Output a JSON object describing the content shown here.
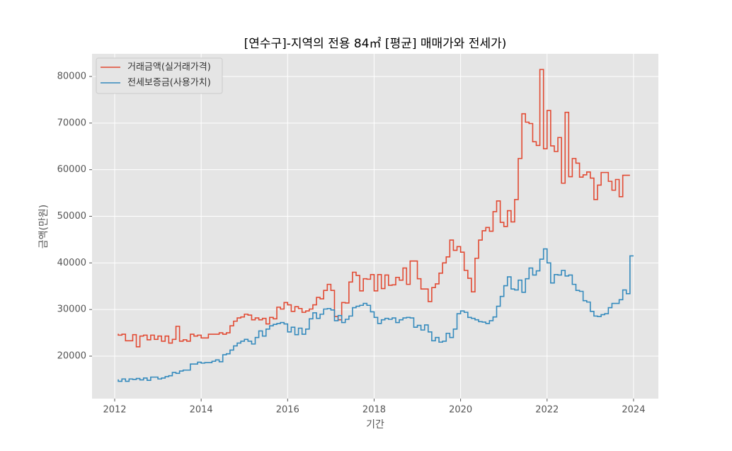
{
  "chart_data": {
    "type": "step",
    "title": "[연수구]-지역의 전용 84㎡ [평균] 매매가와 전세가)",
    "x_label": "기간",
    "y_label": "금액(만원)",
    "x": [
      2012.083,
      2012.167,
      2012.25,
      2012.333,
      2012.417,
      2012.5,
      2012.583,
      2012.667,
      2012.75,
      2012.833,
      2012.917,
      2013,
      2013.083,
      2013.167,
      2013.25,
      2013.333,
      2013.417,
      2013.5,
      2013.583,
      2013.667,
      2013.75,
      2013.833,
      2013.917,
      2014,
      2014.083,
      2014.167,
      2014.25,
      2014.333,
      2014.417,
      2014.5,
      2014.583,
      2014.667,
      2014.75,
      2014.833,
      2014.917,
      2015,
      2015.083,
      2015.167,
      2015.25,
      2015.333,
      2015.417,
      2015.5,
      2015.583,
      2015.667,
      2015.75,
      2015.833,
      2015.917,
      2016,
      2016.083,
      2016.167,
      2016.25,
      2016.333,
      2016.417,
      2016.5,
      2016.583,
      2016.667,
      2016.75,
      2016.833,
      2016.917,
      2017,
      2017.083,
      2017.167,
      2017.25,
      2017.333,
      2017.417,
      2017.5,
      2017.583,
      2017.667,
      2017.75,
      2017.833,
      2017.917,
      2018,
      2018.083,
      2018.167,
      2018.25,
      2018.333,
      2018.417,
      2018.5,
      2018.583,
      2018.667,
      2018.75,
      2018.833,
      2018.917,
      2019,
      2019.083,
      2019.167,
      2019.25,
      2019.333,
      2019.417,
      2019.5,
      2019.583,
      2019.667,
      2019.75,
      2019.833,
      2019.917,
      2020,
      2020.083,
      2020.167,
      2020.25,
      2020.333,
      2020.417,
      2020.5,
      2020.583,
      2020.667,
      2020.75,
      2020.833,
      2020.917,
      2021,
      2021.083,
      2021.167,
      2021.25,
      2021.333,
      2021.417,
      2021.5,
      2021.583,
      2021.667,
      2021.75,
      2021.833,
      2021.917,
      2022,
      2022.083,
      2022.167,
      2022.25,
      2022.333,
      2022.417,
      2022.5,
      2022.583,
      2022.667,
      2022.75,
      2022.833,
      2022.917,
      2023,
      2023.083,
      2023.167,
      2023.25,
      2023.333,
      2023.417,
      2023.5,
      2023.583,
      2023.667,
      2023.75,
      2023.833,
      2023.917,
      2024
    ],
    "series": [
      {
        "name": "거래금액(실거래가격)",
        "color": "#E24A33",
        "values": [
          24800,
          24500,
          24700,
          23300,
          23300,
          24600,
          22000,
          24300,
          24500,
          23500,
          24500,
          23600,
          24300,
          23200,
          24300,
          22800,
          23600,
          26400,
          23200,
          23500,
          23200,
          24700,
          24300,
          24500,
          23900,
          23900,
          24700,
          24700,
          24700,
          25000,
          24700,
          25000,
          26500,
          27500,
          28200,
          28400,
          29000,
          28800,
          27800,
          28200,
          27800,
          28100,
          26900,
          28300,
          28000,
          30500,
          30100,
          31500,
          31000,
          29600,
          30600,
          30200,
          29400,
          29700,
          30100,
          31000,
          32600,
          32300,
          34100,
          35400,
          34100,
          28500,
          27800,
          31500,
          31400,
          35900,
          38000,
          37300,
          34000,
          36600,
          36500,
          37500,
          34000,
          37500,
          34500,
          37400,
          35200,
          35300,
          36900,
          36300,
          38900,
          35400,
          40400,
          40400,
          36600,
          34400,
          34400,
          31700,
          34700,
          35500,
          37800,
          40000,
          41300,
          44900,
          42700,
          43500,
          42300,
          38400,
          36700,
          33800,
          41000,
          44900,
          46900,
          47600,
          46800,
          51000,
          53300,
          48700,
          47800,
          51200,
          48800,
          53600,
          62400,
          72000,
          70200,
          69900,
          66000,
          65200,
          81500,
          64500,
          72700,
          65100,
          63900,
          66900,
          57100,
          72300,
          58500,
          62400,
          61400,
          58400,
          58900,
          59500,
          58200,
          53600,
          56700,
          59400,
          59400,
          57500,
          55600,
          57900,
          54200,
          58800,
          58800,
          null
        ]
      },
      {
        "name": "전세보증금(사용가치)",
        "color": "#348ABD",
        "values": [
          15000,
          14600,
          15100,
          14600,
          15100,
          15000,
          15200,
          14900,
          15300,
          14800,
          15500,
          15500,
          15100,
          15300,
          15600,
          15800,
          16500,
          16300,
          16800,
          17000,
          17000,
          18300,
          18300,
          18700,
          18500,
          18600,
          18600,
          18900,
          19200,
          18800,
          20300,
          20500,
          21300,
          22200,
          22800,
          23200,
          23600,
          23200,
          22600,
          24000,
          25400,
          24300,
          25800,
          26500,
          26800,
          27000,
          27200,
          26900,
          25200,
          26200,
          24600,
          26000,
          24700,
          25800,
          28000,
          29300,
          28100,
          29000,
          30100,
          30200,
          29900,
          27600,
          28700,
          27200,
          27900,
          28600,
          30400,
          30700,
          30900,
          31300,
          30900,
          29500,
          28300,
          27000,
          27800,
          28100,
          27900,
          28200,
          27200,
          27800,
          28200,
          28300,
          28200,
          26200,
          26600,
          25600,
          26700,
          25200,
          23300,
          24000,
          23000,
          23200,
          24900,
          24000,
          25800,
          29100,
          29700,
          29400,
          28300,
          28100,
          27800,
          27400,
          27300,
          27000,
          27600,
          28400,
          30700,
          32800,
          35100,
          37000,
          34400,
          34200,
          36300,
          33700,
          36600,
          38900,
          37400,
          38300,
          40800,
          43000,
          40000,
          35700,
          37500,
          37400,
          38400,
          37200,
          37400,
          35400,
          34100,
          33900,
          31900,
          31600,
          29600,
          28600,
          28500,
          28900,
          29100,
          30400,
          31300,
          31300,
          32100,
          34200,
          33400,
          41500
        ]
      }
    ],
    "xlim": [
      2011.476,
      2024.574
    ],
    "xticks": [
      2012,
      2014,
      2016,
      2018,
      2020,
      2022,
      2024
    ],
    "ylim": [
      10886,
      84861
    ],
    "yticks": [
      20000,
      30000,
      40000,
      50000,
      60000,
      70000,
      80000
    ],
    "grid": true,
    "legend": "upper-left"
  }
}
